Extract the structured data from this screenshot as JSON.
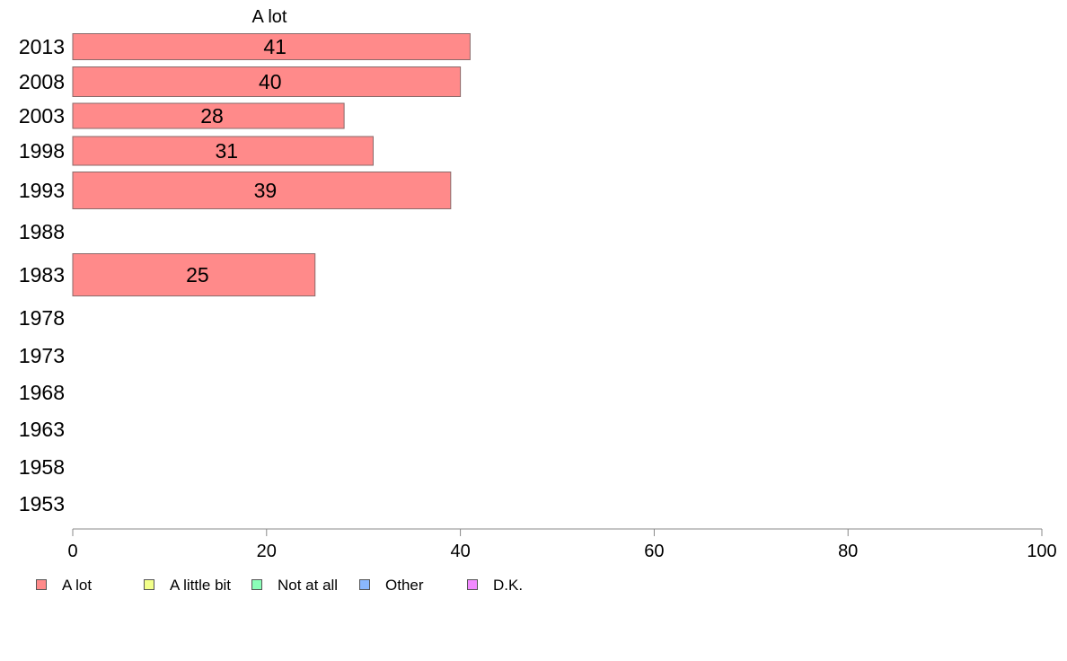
{
  "chart_data": {
    "type": "bar",
    "orientation": "horizontal",
    "title": "A lot",
    "categories": [
      "2013",
      "2008",
      "2003",
      "1998",
      "1993",
      "1988",
      "1983",
      "1978",
      "1973",
      "1968",
      "1963",
      "1958",
      "1953"
    ],
    "series": [
      {
        "name": "A lot",
        "values": [
          41,
          40,
          28,
          31,
          39,
          null,
          25,
          null,
          null,
          null,
          null,
          null,
          null
        ]
      }
    ],
    "xlim": [
      0,
      100
    ],
    "xticks": [
      "0",
      "20",
      "40",
      "60",
      "80",
      "100"
    ],
    "data_labels": [
      "41",
      "40",
      "28",
      "31",
      "39",
      "",
      "25",
      "",
      "",
      "",
      "",
      "",
      ""
    ],
    "grid": false,
    "legend_position": "bottom"
  },
  "legend": {
    "items": [
      {
        "label": "A lot",
        "color": "#ff8a8a"
      },
      {
        "label": "A little bit",
        "color": "#f2ff8a"
      },
      {
        "label": "Not at all",
        "color": "#8affb8"
      },
      {
        "label": "Other",
        "color": "#8ab8ff"
      },
      {
        "label": "D.K.",
        "color": "#f28aff"
      }
    ]
  }
}
